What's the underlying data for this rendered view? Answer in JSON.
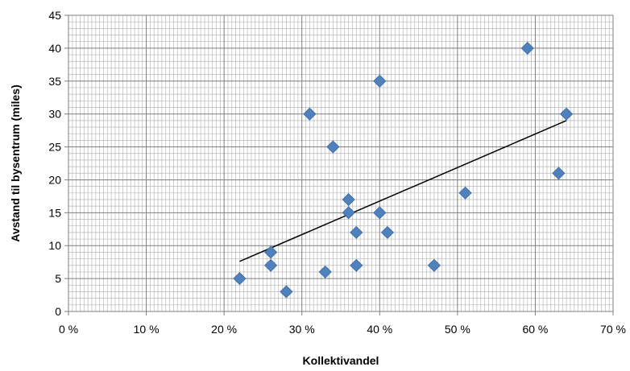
{
  "chart_data": {
    "type": "scatter",
    "title": "",
    "xlabel": "Kollektivandel",
    "ylabel": "Avstand til bysentrum (miles)",
    "xlim": [
      0,
      0.7
    ],
    "ylim": [
      0,
      45
    ],
    "x_ticks": [
      0,
      0.1,
      0.2,
      0.3,
      0.4,
      0.5,
      0.6,
      0.7
    ],
    "x_tick_labels": [
      "0 %",
      "10 %",
      "20 %",
      "30 %",
      "40 %",
      "50 %",
      "60 %",
      "70 %"
    ],
    "y_ticks": [
      0,
      5,
      10,
      15,
      20,
      25,
      30,
      35,
      40,
      45
    ],
    "y_tick_labels": [
      "0",
      "5",
      "10",
      "15",
      "20",
      "25",
      "30",
      "35",
      "40",
      "45"
    ],
    "grid": true,
    "legend": "none",
    "series": [
      {
        "marker": "diamond",
        "color": "#4f81bd",
        "points": [
          {
            "x": 0.22,
            "y": 5
          },
          {
            "x": 0.26,
            "y": 9
          },
          {
            "x": 0.26,
            "y": 7
          },
          {
            "x": 0.28,
            "y": 3
          },
          {
            "x": 0.31,
            "y": 30
          },
          {
            "x": 0.33,
            "y": 6
          },
          {
            "x": 0.34,
            "y": 25
          },
          {
            "x": 0.36,
            "y": 17
          },
          {
            "x": 0.36,
            "y": 15
          },
          {
            "x": 0.37,
            "y": 12
          },
          {
            "x": 0.37,
            "y": 7
          },
          {
            "x": 0.4,
            "y": 35
          },
          {
            "x": 0.4,
            "y": 15
          },
          {
            "x": 0.41,
            "y": 12
          },
          {
            "x": 0.47,
            "y": 7
          },
          {
            "x": 0.51,
            "y": 18
          },
          {
            "x": 0.59,
            "y": 40
          },
          {
            "x": 0.63,
            "y": 21
          },
          {
            "x": 0.64,
            "y": 30
          }
        ]
      }
    ],
    "trendline": {
      "type": "linear",
      "color": "#000000",
      "points": [
        {
          "x": 0.22,
          "y": 7.6
        },
        {
          "x": 0.64,
          "y": 29.0
        }
      ]
    }
  }
}
